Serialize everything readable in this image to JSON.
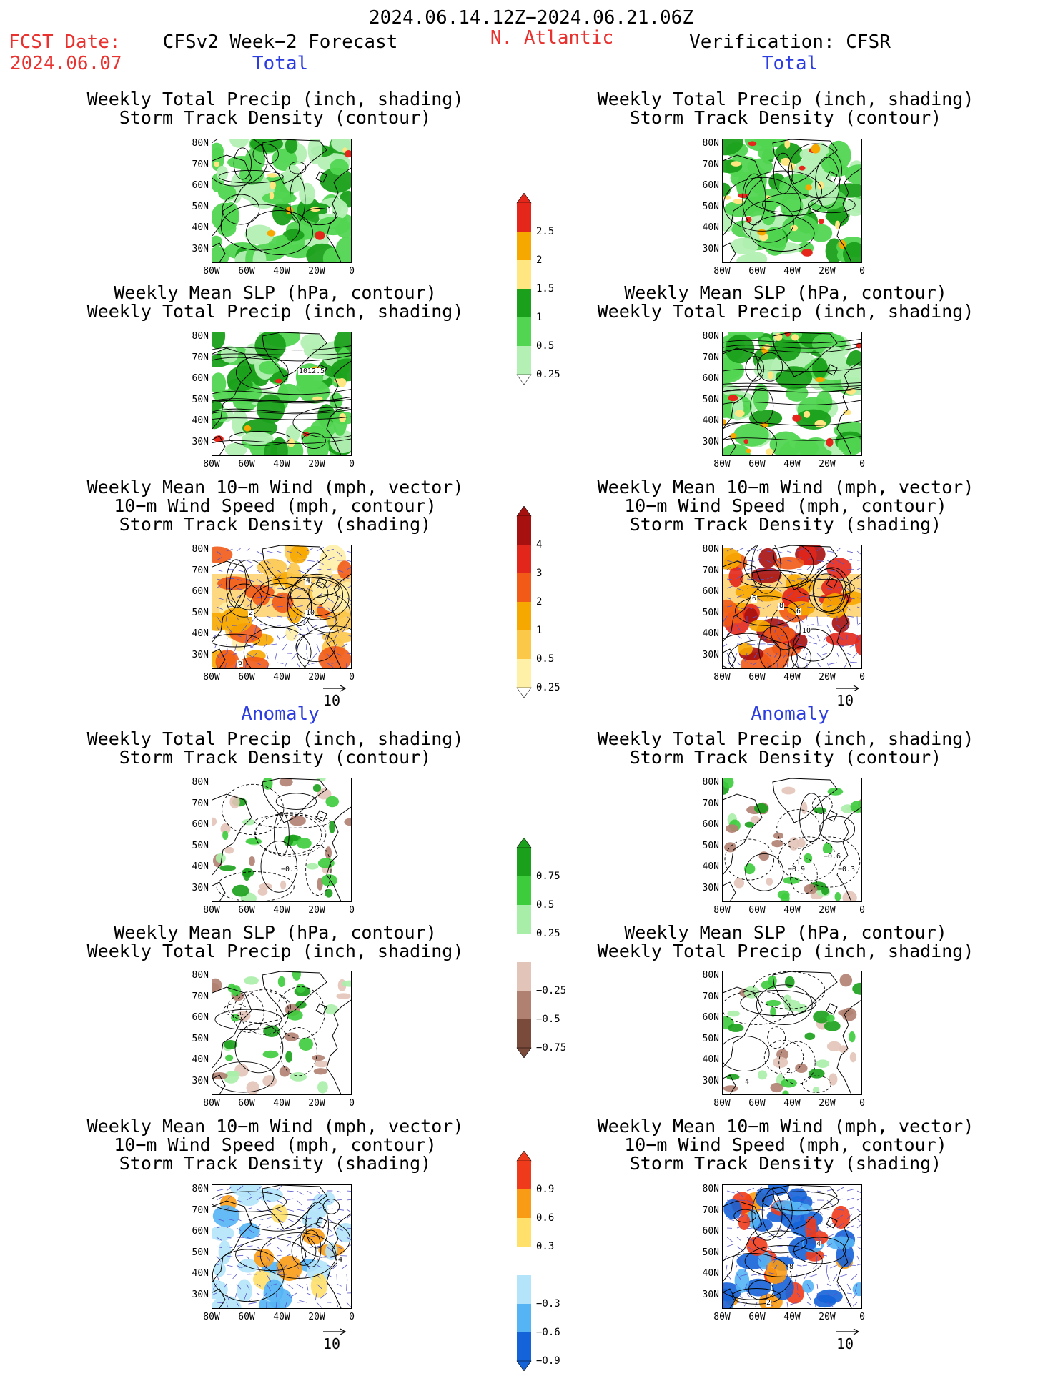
{
  "header": {
    "period": "2024.06.14.12Z−2024.06.21.06Z",
    "fcst_label": "FCST Date:",
    "fcst_date": "2024.06.07",
    "model": "CFSv2 Week−2 Forecast",
    "region": "N. Atlantic",
    "verification": "Verification: CFSR"
  },
  "sections": {
    "total": "Total",
    "anomaly": "Anomaly"
  },
  "titles": {
    "precip_storm": [
      "Weekly Total Precip (inch, shading)",
      "Storm Track Density (contour)"
    ],
    "slp_precip": [
      "Weekly Mean SLP (hPa, contour)",
      "Weekly Total Precip (inch, shading)"
    ],
    "wind_storm": [
      "Weekly Mean 10−m Wind (mph, vector)",
      "10−m Wind Speed (mph, contour)",
      "Storm Track Density (shading)"
    ]
  },
  "axes": {
    "lat": [
      "80N",
      "70N",
      "60N",
      "50N",
      "40N",
      "30N"
    ],
    "lon": [
      "80W",
      "60W",
      "40W",
      "20W",
      "0"
    ]
  },
  "vector_ref": "10",
  "colorbars": {
    "precip_total": {
      "labels": [
        "2.5",
        "2",
        "1.5",
        "1",
        "0.5",
        "0.25"
      ],
      "colors": [
        "#e4261b",
        "#f7a800",
        "#ffe680",
        "#1aa01a",
        "#52d652",
        "#b4f0b4"
      ]
    },
    "storm_total": {
      "labels": [
        "4",
        "3",
        "2",
        "1",
        "0.5",
        "0.25"
      ],
      "colors": [
        "#a6100e",
        "#e3261b",
        "#f15a17",
        "#f7a800",
        "#fcc84a",
        "#fff0a8"
      ]
    },
    "precip_anom": {
      "labels": [
        "0.75",
        "0.5",
        "0.25",
        "−0.25",
        "−0.5",
        "−0.75"
      ],
      "colors": [
        "#1aa01a",
        "#3ccc3c",
        "#a8eea8",
        "#ffffff",
        "#e3c4b8",
        "#b08070",
        "#7a4a3a"
      ]
    },
    "storm_anom": {
      "labels": [
        "0.9",
        "0.6",
        "0.3",
        "−0.3",
        "−0.6",
        "−0.9"
      ],
      "colors": [
        "#ef3b1b",
        "#f99b14",
        "#ffe06a",
        "#ffffff",
        "#b4e4fa",
        "#54b4f4",
        "#1463d8"
      ]
    }
  },
  "contour_labels": {
    "f1": "1",
    "f2": "1012.5",
    "f3a": "4",
    "f3b": "2",
    "f3c": "10",
    "f3d": "6",
    "v3a": "6",
    "v3b": "8",
    "v3c": "6",
    "v3d": "10",
    "f4": "−0.3",
    "v4a": "−0.6",
    "v4b": "−0.9",
    "v4c": "−0.3",
    "v5a": "4",
    "v5b": "2",
    "f6": "4",
    "v6a": "4",
    "v6b": "8",
    "v6c": "2"
  }
}
